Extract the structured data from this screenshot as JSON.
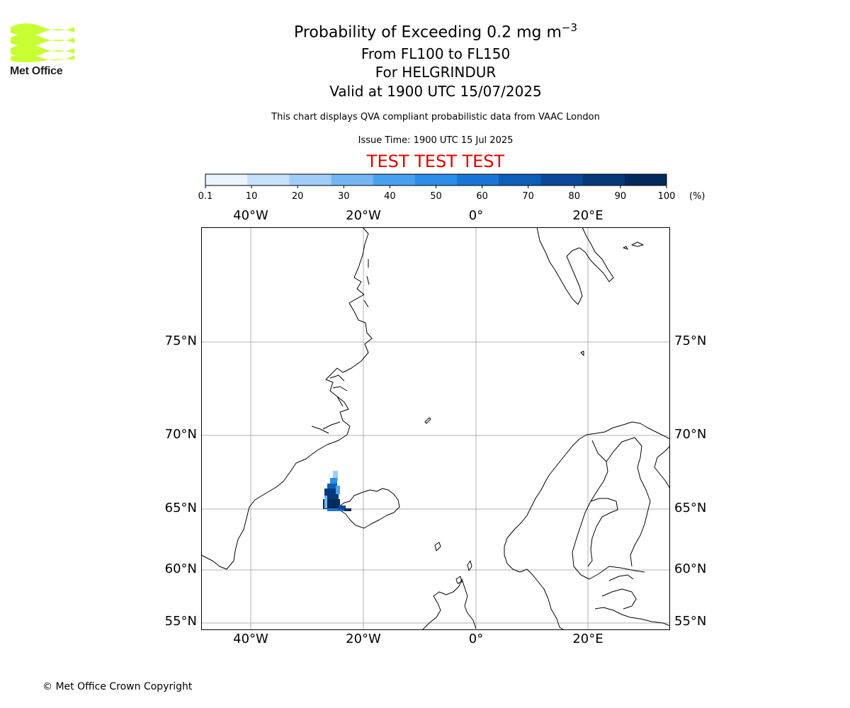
{
  "logo": {
    "text": "Met Office",
    "color": "#c8ff32"
  },
  "title": {
    "main": "Probability of Exceeding 0.2 mg m",
    "main_superscript": "−3",
    "levels": "From FL100 to FL150",
    "volcano": "For HELGRINDUR",
    "valid": "Valid at 1900 UTC 15/07/2025"
  },
  "disclaimer": "This chart displays QVA compliant probabilistic data from VAAC London",
  "issue_time": "Issue Time: 1900 UTC 15 Jul 2025",
  "test_banner": {
    "text": "TEST TEST TEST",
    "color": "#e00000"
  },
  "colorbar": {
    "ticks": [
      "0.1",
      "10",
      "20",
      "30",
      "40",
      "50",
      "60",
      "70",
      "80",
      "90",
      "100"
    ],
    "unit": "(%)",
    "colors": [
      "#eaf4ff",
      "#c6e2fb",
      "#9fcdf7",
      "#72b7f4",
      "#48a1f0",
      "#2a8eea",
      "#1a76d6",
      "#0d5eb9",
      "#084a99",
      "#06397a",
      "#032a5c"
    ]
  },
  "map": {
    "lon_labels": [
      "40°W",
      "20°W",
      "0°",
      "20°E"
    ],
    "lat_labels": [
      "75°N",
      "70°N",
      "65°N",
      "60°N",
      "55°N"
    ]
  },
  "footer": {
    "copyright": "© Met Office Crown Copyright"
  }
}
